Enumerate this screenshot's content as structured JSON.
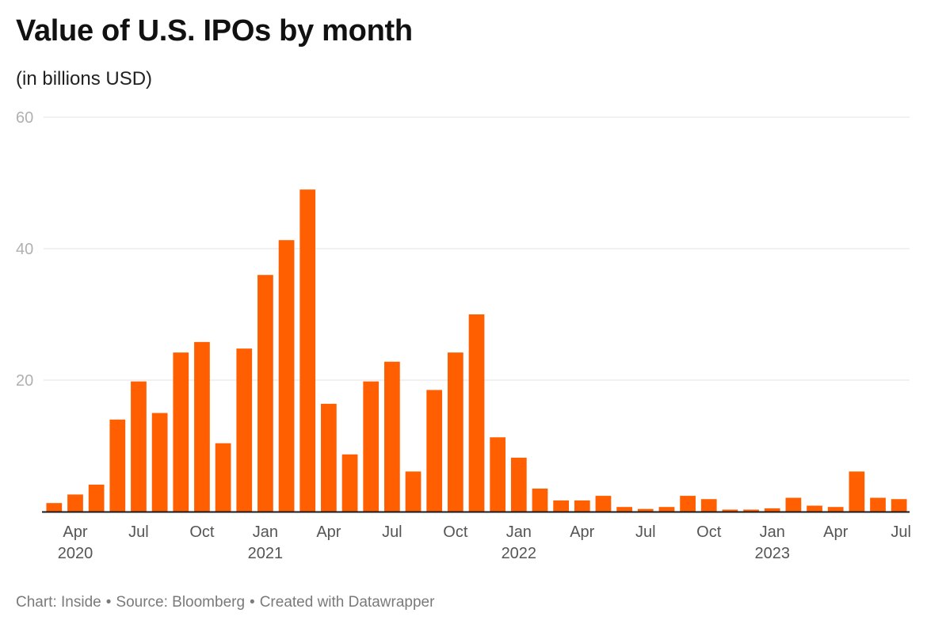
{
  "header": {
    "title": "Value of U.S. IPOs by month",
    "subtitle": "(in billions USD)"
  },
  "footer": {
    "chart_by": "Chart: Inside",
    "source": "Source: Bloomberg",
    "created": "Created with Datawrapper",
    "separator": "•"
  },
  "colors": {
    "bar": "#ff5f00",
    "grid": "#e3e3e3",
    "axis": "#1a1a1a",
    "tick_label": "#b0b0b0",
    "x_label": "#555555"
  },
  "chart_data": {
    "type": "bar",
    "title": "Value of U.S. IPOs by month",
    "subtitle": "(in billions USD)",
    "ylim": [
      0,
      60
    ],
    "y_ticks": [
      20,
      40,
      60
    ],
    "grid": true,
    "categories": [
      "Mar 2020",
      "Apr 2020",
      "May 2020",
      "Jun 2020",
      "Jul 2020",
      "Aug 2020",
      "Sep 2020",
      "Oct 2020",
      "Nov 2020",
      "Dec 2020",
      "Jan 2021",
      "Feb 2021",
      "Mar 2021",
      "Apr 2021",
      "May 2021",
      "Jun 2021",
      "Jul 2021",
      "Aug 2021",
      "Sep 2021",
      "Oct 2021",
      "Nov 2021",
      "Dec 2021",
      "Jan 2022",
      "Feb 2022",
      "Mar 2022",
      "Apr 2022",
      "May 2022",
      "Jun 2022",
      "Jul 2022",
      "Aug 2022",
      "Sep 2022",
      "Oct 2022",
      "Nov 2022",
      "Dec 2022",
      "Jan 2023",
      "Feb 2023",
      "Mar 2023",
      "Apr 2023",
      "May 2023",
      "Jun 2023",
      "Jul 2023"
    ],
    "values": [
      1.3,
      2.6,
      4.1,
      14.0,
      19.8,
      15.0,
      24.2,
      25.8,
      10.4,
      24.8,
      36.0,
      41.3,
      49.0,
      16.4,
      8.7,
      19.8,
      22.8,
      6.1,
      18.5,
      24.2,
      30.0,
      11.3,
      8.2,
      3.5,
      1.7,
      1.7,
      2.4,
      0.7,
      0.4,
      0.7,
      2.4,
      1.9,
      0.3,
      0.3,
      0.5,
      2.1,
      0.9,
      0.7,
      6.1,
      2.1,
      1.9
    ],
    "x_tick_labels": [
      {
        "index": 1,
        "month": "Apr",
        "year": "2020"
      },
      {
        "index": 4,
        "month": "Jul",
        "year": ""
      },
      {
        "index": 7,
        "month": "Oct",
        "year": ""
      },
      {
        "index": 10,
        "month": "Jan",
        "year": "2021"
      },
      {
        "index": 13,
        "month": "Apr",
        "year": ""
      },
      {
        "index": 16,
        "month": "Jul",
        "year": ""
      },
      {
        "index": 19,
        "month": "Oct",
        "year": ""
      },
      {
        "index": 22,
        "month": "Jan",
        "year": "2022"
      },
      {
        "index": 25,
        "month": "Apr",
        "year": ""
      },
      {
        "index": 28,
        "month": "Jul",
        "year": ""
      },
      {
        "index": 31,
        "month": "Oct",
        "year": ""
      },
      {
        "index": 34,
        "month": "Jan",
        "year": "2023"
      },
      {
        "index": 37,
        "month": "Apr",
        "year": ""
      },
      {
        "index": 40,
        "month": "Jul",
        "year": ""
      }
    ]
  }
}
